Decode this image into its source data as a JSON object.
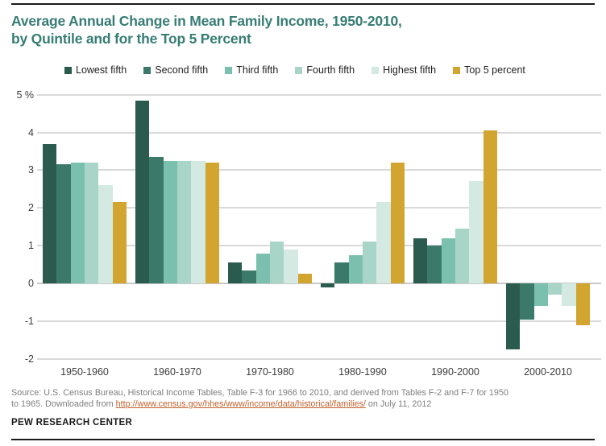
{
  "page": {
    "title_line1": "Average Annual Change in Mean Family Income, 1950-2010,",
    "title_line2": "by Quintile and for the Top 5 Percent"
  },
  "colors": {
    "title": "#377D74",
    "link": "#C2622E",
    "source_text": "#7F7F7F",
    "gridline": "#D9D9D9",
    "rule": "#1A1A1A",
    "tick_text": "#3D3D3D"
  },
  "chart_data": {
    "type": "bar",
    "title": "Average Annual Change in Mean Family Income, 1950-2010, by Quintile and for the Top 5 Percent",
    "categories": [
      "1950-1960",
      "1960-1970",
      "1970-1980",
      "1980-1990",
      "1990-2000",
      "2000-2010"
    ],
    "series": [
      {
        "name": "Lowest fifth",
        "color": "#2B5B4F",
        "values": [
          3.7,
          4.85,
          0.55,
          -0.1,
          1.2,
          -1.75
        ]
      },
      {
        "name": "Second fifth",
        "color": "#3B7A6A",
        "values": [
          3.15,
          3.35,
          0.35,
          0.55,
          1.0,
          -0.95
        ]
      },
      {
        "name": "Third fifth",
        "color": "#7BC0AE",
        "values": [
          3.2,
          3.25,
          0.8,
          0.75,
          1.2,
          -0.6
        ]
      },
      {
        "name": "Fourth fifth",
        "color": "#A8D5C7",
        "values": [
          3.2,
          3.25,
          1.1,
          1.1,
          1.45,
          -0.3
        ]
      },
      {
        "name": "Highest fifth",
        "color": "#D3E9E1",
        "values": [
          2.6,
          3.25,
          0.9,
          2.15,
          2.7,
          -0.6
        ]
      },
      {
        "name": "Top 5 percent",
        "color": "#D1A52F",
        "values": [
          2.15,
          3.2,
          0.25,
          3.2,
          4.05,
          -1.1
        ]
      }
    ],
    "ylim": [
      -2,
      5
    ],
    "yticks": [
      5,
      4,
      3,
      2,
      1,
      0,
      -1,
      -2
    ],
    "ytick_labels": [
      "5 %",
      "4",
      "3",
      "2",
      "1",
      "0",
      "-1",
      "-2"
    ],
    "grid": true,
    "legend_position": "top",
    "xlabel": "",
    "ylabel": ""
  },
  "source": {
    "line1": "Source: U.S. Census Bureau, Historical Income Tables, Table F-3 for 1966 to 2010, and derived from Tables F-2 and F-7 for 1950",
    "line2_prefix": "to 1965. Downloaded from ",
    "link_text": "http://www.census.gov/hhes/www/income/data/historical/families/",
    "line2_suffix": " on July 11, 2012"
  },
  "footer": {
    "brand": "PEW RESEARCH CENTER"
  }
}
